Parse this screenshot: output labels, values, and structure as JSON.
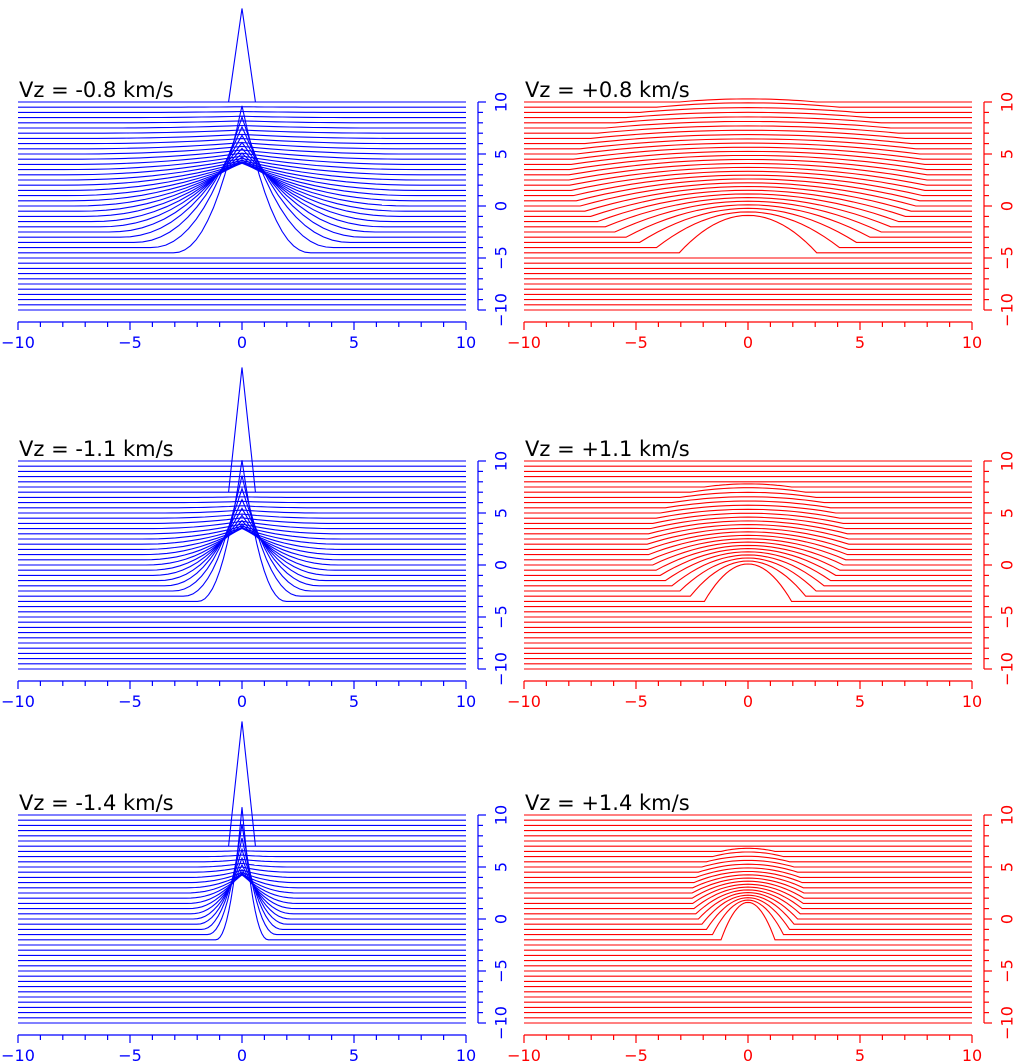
{
  "figure": {
    "colors": {
      "negative": "#0000ff",
      "positive": "#ff0000",
      "label": "#000000"
    }
  },
  "chart_data": [
    {
      "type": "line",
      "label": "Vz = -0.8 km/s",
      "color": "#0000ff",
      "xlim": [
        -10,
        10
      ],
      "ylim": [
        -10,
        10
      ],
      "xticks": [
        "−10",
        "−5",
        "0",
        "5",
        "10"
      ],
      "yticks": [
        "−10",
        "−5",
        "0",
        "5",
        "10"
      ],
      "grid": false,
      "line_spacing": 0.5,
      "peak_y": 19,
      "inner_radius": 8.0,
      "dome_top": 10,
      "dome_bottom": -4.5,
      "cusp": true
    },
    {
      "type": "line",
      "label": "Vz = +0.8 km/s",
      "color": "#ff0000",
      "xlim": [
        -10,
        10
      ],
      "ylim": [
        -10,
        10
      ],
      "xticks": [
        "−10",
        "−5",
        "0",
        "5",
        "10"
      ],
      "yticks": [
        "−10",
        "−5",
        "0",
        "5",
        "10"
      ],
      "grid": false,
      "line_spacing": 0.5,
      "peak_y": 10,
      "inner_radius": 8.0,
      "dome_top": 10,
      "dome_bottom": -4.5,
      "cusp": false
    },
    {
      "type": "line",
      "label": "Vz = -1.1 km/s",
      "color": "#0000ff",
      "xlim": [
        -10,
        10
      ],
      "ylim": [
        -10,
        10
      ],
      "xticks": [
        "−10",
        "−5",
        "0",
        "5",
        "10"
      ],
      "yticks": [
        "−10",
        "−5",
        "0",
        "5",
        "10"
      ],
      "grid": false,
      "line_spacing": 0.5,
      "peak_y": 19,
      "inner_radius": 4.5,
      "dome_top": 7,
      "dome_bottom": -3.5,
      "cusp": true
    },
    {
      "type": "line",
      "label": "Vz = +1.1 km/s",
      "color": "#ff0000",
      "xlim": [
        -10,
        10
      ],
      "ylim": [
        -10,
        10
      ],
      "xticks": [
        "−10",
        "−5",
        "0",
        "5",
        "10"
      ],
      "yticks": [
        "−10",
        "−5",
        "0",
        "5",
        "10"
      ],
      "grid": false,
      "line_spacing": 0.5,
      "peak_y": 7.5,
      "inner_radius": 4.5,
      "dome_top": 7.5,
      "dome_bottom": -3.5,
      "cusp": false
    },
    {
      "type": "line",
      "label": "Vz = -1.4 km/s",
      "color": "#0000ff",
      "xlim": [
        -10,
        10
      ],
      "ylim": [
        -10,
        10
      ],
      "xticks": [
        "−10",
        "−5",
        "0",
        "5",
        "10"
      ],
      "yticks": [
        "−10",
        "−5",
        "0",
        "5",
        "10"
      ],
      "grid": false,
      "line_spacing": 0.5,
      "peak_y": 19,
      "inner_radius": 2.5,
      "dome_top": 7,
      "dome_bottom": -2,
      "cusp": true
    },
    {
      "type": "line",
      "label": "Vz = +1.4 km/s",
      "color": "#ff0000",
      "xlim": [
        -10,
        10
      ],
      "ylim": [
        -10,
        10
      ],
      "xticks": [
        "−10",
        "−5",
        "0",
        "5",
        "10"
      ],
      "yticks": [
        "−10",
        "−5",
        "0",
        "5",
        "10"
      ],
      "grid": false,
      "line_spacing": 0.5,
      "peak_y": 6.5,
      "inner_radius": 2.5,
      "dome_top": 6.5,
      "dome_bottom": -2,
      "cusp": false
    }
  ]
}
